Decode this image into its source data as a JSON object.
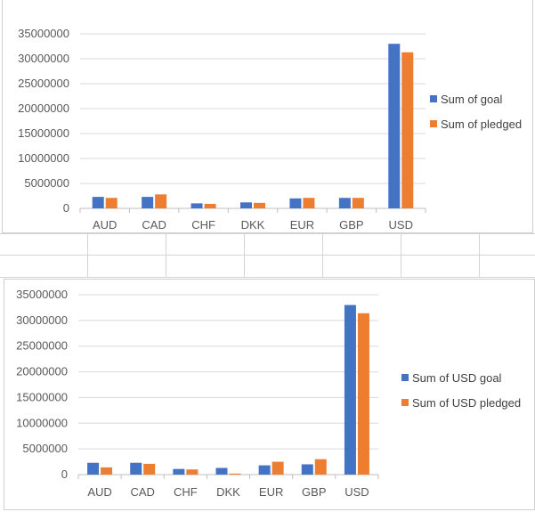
{
  "colors": {
    "series_blue": "#4472c4",
    "series_orange": "#ed7d31",
    "gridline": "#d9d9d9",
    "axis_text": "#595959"
  },
  "chart_data": [
    {
      "type": "bar",
      "title": "",
      "categories": [
        "AUD",
        "CAD",
        "CHF",
        "DKK",
        "EUR",
        "GBP",
        "USD"
      ],
      "series": [
        {
          "name": "Sum of goal",
          "color": "#4472c4",
          "values": [
            2300000,
            2300000,
            1000000,
            1200000,
            2000000,
            2100000,
            33000000
          ]
        },
        {
          "name": "Sum of pledged",
          "color": "#ed7d31",
          "values": [
            2100000,
            2800000,
            900000,
            1100000,
            2100000,
            2100000,
            31300000
          ]
        }
      ],
      "y_ticks": [
        "0",
        "5000000",
        "10000000",
        "15000000",
        "20000000",
        "25000000",
        "30000000",
        "35000000"
      ],
      "ylim": [
        0,
        35000000
      ],
      "grid": true,
      "legend": "right"
    },
    {
      "type": "bar",
      "title": "",
      "categories": [
        "AUD",
        "CAD",
        "CHF",
        "DKK",
        "EUR",
        "GBP",
        "USD"
      ],
      "series": [
        {
          "name": "Sum of USD goal",
          "color": "#4472c4",
          "values": [
            2300000,
            2300000,
            1100000,
            1300000,
            1800000,
            2000000,
            33000000
          ]
        },
        {
          "name": "Sum of USD pledged",
          "color": "#ed7d31",
          "values": [
            1400000,
            2100000,
            1000000,
            200000,
            2500000,
            3000000,
            31400000
          ]
        }
      ],
      "y_ticks": [
        "0",
        "5000000",
        "10000000",
        "15000000",
        "20000000",
        "25000000",
        "30000000",
        "35000000"
      ],
      "ylim": [
        0,
        35000000
      ],
      "grid": true,
      "legend": "right"
    }
  ]
}
